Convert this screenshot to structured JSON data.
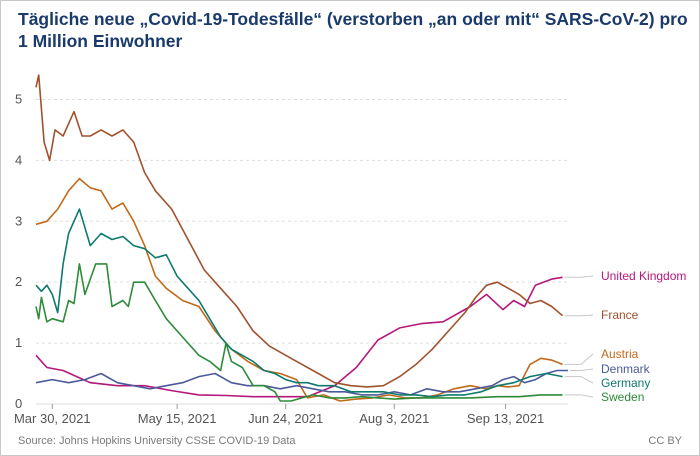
{
  "title": "Tägliche neue „Covid-19-Todesfälle“ (verstorben „an oder mit“ SARS-CoV-2) pro 1 Million Einwohner",
  "source": "Source: Johns Hopkins University CSSE COVID-19 Data",
  "license": "CC BY",
  "chart_data": {
    "type": "line",
    "xlabel": "",
    "ylabel": "",
    "xlim": [
      0,
      196
    ],
    "ylim": [
      0,
      5.5
    ],
    "y_ticks": [
      0,
      1,
      2,
      3,
      4,
      5
    ],
    "x_ticks": [
      {
        "x": 6,
        "label": "Mar 30, 2021"
      },
      {
        "x": 52,
        "label": "May 15, 2021"
      },
      {
        "x": 92,
        "label": "Jun 24, 2021"
      },
      {
        "x": 132,
        "label": "Aug 3, 2021"
      },
      {
        "x": 173,
        "label": "Sep 13, 2021"
      }
    ],
    "grid": true,
    "legend": "inline labels at right end of lines",
    "series": [
      {
        "name": "United Kingdom",
        "color": "#b5177a",
        "x": [
          0,
          4,
          10,
          20,
          30,
          40,
          50,
          60,
          70,
          80,
          90,
          100,
          110,
          118,
          126,
          134,
          142,
          150,
          160,
          166,
          172,
          176,
          180,
          184,
          190,
          194
        ],
        "y": [
          0.8,
          0.6,
          0.55,
          0.35,
          0.3,
          0.3,
          0.22,
          0.15,
          0.14,
          0.12,
          0.12,
          0.12,
          0.3,
          0.6,
          1.05,
          1.25,
          1.32,
          1.35,
          1.6,
          1.8,
          1.55,
          1.7,
          1.6,
          1.95,
          2.05,
          2.08
        ]
      },
      {
        "name": "France",
        "color": "#a0522d",
        "x": [
          0,
          1,
          3,
          5,
          7,
          10,
          14,
          17,
          20,
          24,
          28,
          32,
          36,
          40,
          44,
          50,
          56,
          62,
          68,
          74,
          80,
          86,
          92,
          98,
          104,
          110,
          116,
          122,
          128,
          134,
          140,
          146,
          152,
          158,
          162,
          166,
          170,
          174,
          178,
          182,
          186,
          190,
          194
        ],
        "y": [
          5.2,
          5.4,
          4.3,
          4.0,
          4.5,
          4.4,
          4.8,
          4.4,
          4.4,
          4.5,
          4.4,
          4.5,
          4.3,
          3.8,
          3.5,
          3.2,
          2.7,
          2.2,
          1.9,
          1.6,
          1.2,
          0.95,
          0.8,
          0.65,
          0.5,
          0.35,
          0.3,
          0.28,
          0.3,
          0.45,
          0.65,
          0.9,
          1.2,
          1.5,
          1.75,
          1.95,
          2.0,
          1.9,
          1.8,
          1.65,
          1.7,
          1.6,
          1.45
        ]
      },
      {
        "name": "Austria",
        "color": "#c06a1b",
        "x": [
          0,
          4,
          8,
          12,
          16,
          20,
          24,
          28,
          32,
          36,
          40,
          44,
          48,
          54,
          60,
          66,
          72,
          78,
          84,
          90,
          96,
          100,
          106,
          112,
          118,
          124,
          130,
          136,
          142,
          148,
          154,
          160,
          166,
          170,
          174,
          178,
          182,
          186,
          190,
          194
        ],
        "y": [
          2.95,
          3.0,
          3.2,
          3.5,
          3.7,
          3.55,
          3.5,
          3.2,
          3.3,
          3.0,
          2.6,
          2.1,
          1.9,
          1.7,
          1.6,
          1.2,
          0.9,
          0.7,
          0.55,
          0.5,
          0.4,
          0.1,
          0.15,
          0.05,
          0.08,
          0.1,
          0.15,
          0.1,
          0.1,
          0.15,
          0.25,
          0.3,
          0.25,
          0.3,
          0.28,
          0.3,
          0.65,
          0.75,
          0.72,
          0.65
        ]
      },
      {
        "name": "Denmark",
        "color": "#4a5a9a",
        "x": [
          0,
          6,
          12,
          18,
          24,
          30,
          36,
          42,
          48,
          54,
          60,
          66,
          72,
          78,
          84,
          90,
          96,
          102,
          108,
          114,
          120,
          126,
          132,
          138,
          144,
          150,
          156,
          162,
          168,
          172,
          176,
          180,
          184,
          188,
          192,
          196
        ],
        "y": [
          0.35,
          0.4,
          0.35,
          0.4,
          0.5,
          0.35,
          0.3,
          0.25,
          0.3,
          0.35,
          0.45,
          0.5,
          0.35,
          0.3,
          0.3,
          0.25,
          0.3,
          0.25,
          0.2,
          0.2,
          0.15,
          0.15,
          0.2,
          0.15,
          0.25,
          0.2,
          0.2,
          0.25,
          0.3,
          0.4,
          0.45,
          0.35,
          0.4,
          0.5,
          0.55,
          0.55
        ]
      },
      {
        "name": "Germany",
        "color": "#0f7a6e",
        "x": [
          0,
          2,
          4,
          6,
          8,
          10,
          12,
          16,
          20,
          24,
          28,
          32,
          36,
          40,
          44,
          48,
          52,
          56,
          60,
          64,
          68,
          72,
          76,
          80,
          84,
          88,
          92,
          96,
          100,
          104,
          110,
          116,
          122,
          128,
          134,
          140,
          146,
          152,
          158,
          164,
          170,
          176,
          182,
          188,
          194
        ],
        "y": [
          1.95,
          1.85,
          1.95,
          1.8,
          1.5,
          2.3,
          2.8,
          3.2,
          2.6,
          2.8,
          2.7,
          2.75,
          2.6,
          2.55,
          2.4,
          2.45,
          2.1,
          1.9,
          1.7,
          1.4,
          1.1,
          0.9,
          0.8,
          0.7,
          0.55,
          0.5,
          0.4,
          0.35,
          0.35,
          0.3,
          0.3,
          0.2,
          0.2,
          0.2,
          0.15,
          0.15,
          0.12,
          0.15,
          0.15,
          0.2,
          0.3,
          0.35,
          0.45,
          0.5,
          0.45
        ]
      },
      {
        "name": "Sweden",
        "color": "#2e8b3a",
        "x": [
          0,
          1,
          2,
          4,
          6,
          10,
          12,
          14,
          16,
          18,
          22,
          26,
          28,
          32,
          34,
          36,
          40,
          44,
          48,
          52,
          56,
          60,
          64,
          68,
          70,
          72,
          76,
          80,
          84,
          88,
          90,
          94,
          98,
          102,
          108,
          114,
          120,
          126,
          132,
          140,
          150,
          160,
          170,
          178,
          186,
          194
        ],
        "y": [
          1.6,
          1.4,
          1.75,
          1.35,
          1.4,
          1.35,
          1.7,
          1.65,
          2.3,
          1.8,
          2.3,
          2.3,
          1.6,
          1.7,
          1.6,
          2.0,
          2.0,
          1.7,
          1.4,
          1.2,
          1.0,
          0.8,
          0.7,
          0.55,
          1.0,
          0.7,
          0.6,
          0.3,
          0.3,
          0.2,
          0.05,
          0.05,
          0.1,
          0.15,
          0.1,
          0.1,
          0.12,
          0.1,
          0.08,
          0.1,
          0.1,
          0.1,
          0.12,
          0.12,
          0.15,
          0.15
        ]
      }
    ]
  }
}
